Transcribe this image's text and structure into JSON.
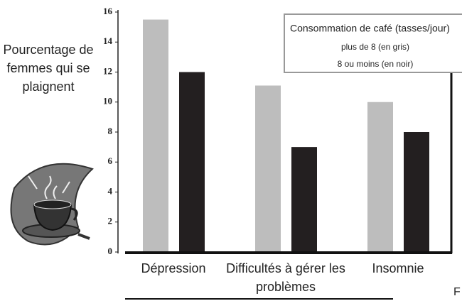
{
  "chart_data": {
    "type": "bar",
    "ylabel": "Pourcentage de femmes qui se plaignent",
    "categories": [
      "Dépression",
      "Difficultés à gérer les problèmes",
      "Insomnie"
    ],
    "legend_title": "Consommation de café (tasses/jour)",
    "series": [
      {
        "name": "plus de 8 (en gris)",
        "color": "#bdbdbd",
        "values": [
          15.5,
          11.1,
          10
        ]
      },
      {
        "name": "8 ou moins (en noir)",
        "color": "#231f20",
        "values": [
          12,
          7,
          8
        ]
      }
    ],
    "ylim": [
      0,
      16
    ],
    "yticks": [
      0,
      2,
      4,
      6,
      8,
      10,
      12,
      14,
      16
    ],
    "fragment": "F"
  }
}
